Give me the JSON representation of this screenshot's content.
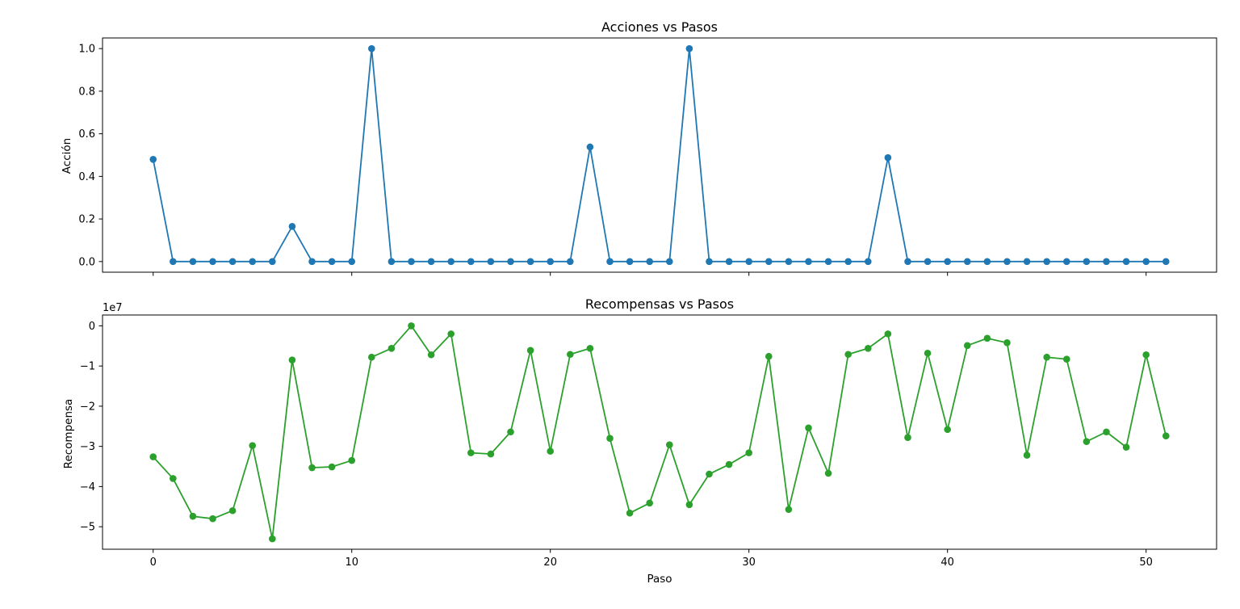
{
  "chart_data": [
    {
      "type": "line",
      "title": "Acciones vs Pasos",
      "xlabel": "",
      "ylabel": "Acción",
      "xlim": [
        -2.55,
        53.55
      ],
      "ylim": [
        -0.05,
        1.05
      ],
      "xticks": [
        0,
        10,
        20,
        30,
        40,
        50
      ],
      "xtick_labels_visible": false,
      "yticks": [
        0.0,
        0.2,
        0.4,
        0.6,
        0.8,
        1.0
      ],
      "ytick_labels": [
        "0.0",
        "0.2",
        "0.4",
        "0.6",
        "0.8",
        "1.0"
      ],
      "marker": "circle",
      "color": "#1f77b4",
      "x": [
        0,
        1,
        2,
        3,
        4,
        5,
        6,
        7,
        8,
        9,
        10,
        11,
        12,
        13,
        14,
        15,
        16,
        17,
        18,
        19,
        20,
        21,
        22,
        23,
        24,
        25,
        26,
        27,
        28,
        29,
        30,
        31,
        32,
        33,
        34,
        35,
        36,
        37,
        38,
        39,
        40,
        41,
        42,
        43,
        44,
        45,
        46,
        47,
        48,
        49,
        50,
        51
      ],
      "y": [
        0.48,
        0,
        0,
        0,
        0,
        0,
        0,
        0.165,
        0,
        0,
        0,
        1.0,
        0,
        0,
        0,
        0,
        0,
        0,
        0,
        0,
        0,
        0,
        0.538,
        0,
        0,
        0,
        0,
        1.0,
        0,
        0,
        0,
        0,
        0,
        0,
        0,
        0,
        0,
        0.488,
        0,
        0,
        0,
        0,
        0,
        0,
        0,
        0,
        0,
        0,
        0,
        0,
        0,
        0
      ]
    },
    {
      "type": "line",
      "title": "Recompensas vs Pasos",
      "xlabel": "Paso",
      "ylabel": "Recompensa",
      "offset_text": "1e7",
      "xlim": [
        -2.55,
        53.55
      ],
      "ylim": [
        -5.56,
        0.27
      ],
      "xticks": [
        0,
        10,
        20,
        30,
        40,
        50
      ],
      "xtick_labels": [
        "0",
        "10",
        "20",
        "30",
        "40",
        "50"
      ],
      "yticks": [
        -5,
        -4,
        -3,
        -2,
        -1,
        0
      ],
      "ytick_labels": [
        "−5",
        "−4",
        "−3",
        "−2",
        "−1",
        "0"
      ],
      "marker": "circle",
      "color": "#2ca02c",
      "x": [
        0,
        1,
        2,
        3,
        4,
        5,
        6,
        7,
        8,
        9,
        10,
        11,
        12,
        13,
        14,
        15,
        16,
        17,
        18,
        19,
        20,
        21,
        22,
        23,
        24,
        25,
        26,
        27,
        28,
        29,
        30,
        31,
        32,
        33,
        34,
        35,
        36,
        37,
        38,
        39,
        40,
        41,
        42,
        43,
        44,
        45,
        46,
        47,
        48,
        49,
        50,
        51
      ],
      "y": [
        -3.26,
        -3.8,
        -4.74,
        -4.8,
        -4.6,
        -2.98,
        -5.3,
        -0.85,
        -3.53,
        -3.51,
        -3.35,
        -0.78,
        -0.56,
        0.0,
        -0.72,
        -0.2,
        -3.16,
        -3.19,
        -2.64,
        -0.61,
        -3.12,
        -0.71,
        -0.56,
        -2.8,
        -4.66,
        -4.41,
        -2.96,
        -4.45,
        -3.69,
        -3.45,
        -3.16,
        -0.76,
        -4.57,
        -2.54,
        -3.67,
        -0.71,
        -0.56,
        -0.2,
        -2.78,
        -0.68,
        -2.58,
        -0.49,
        -0.31,
        -0.42,
        -3.22,
        -0.78,
        -0.83,
        -2.88,
        -2.64,
        -3.02,
        -0.72,
        -2.74
      ]
    }
  ]
}
